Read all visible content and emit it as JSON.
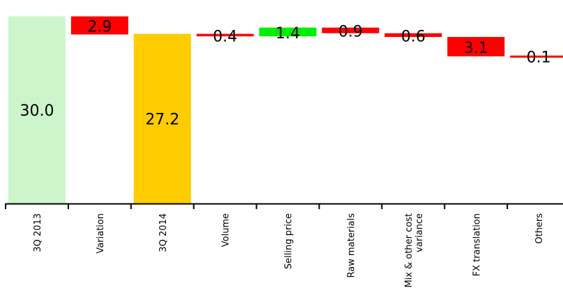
{
  "chart_data": {
    "type": "bar",
    "subtype": "waterfall",
    "title": "",
    "xlabel": "",
    "ylabel": "",
    "grid": false,
    "legend": "none",
    "categories": [
      "3Q 2013",
      "Variation",
      "3Q 2014",
      "Volume",
      "Selling price",
      "Raw materials",
      "Mix & other cost variance",
      "FX translation",
      "Others"
    ],
    "values": [
      30.0,
      -2.9,
      27.2,
      -0.4,
      1.4,
      -0.9,
      -0.6,
      -3.1,
      -0.1
    ],
    "labels": [
      "30.0",
      "2.9",
      "27.2",
      "0.4",
      "1.4",
      "0.9",
      "0.6",
      "3.1",
      "0.1"
    ],
    "bar_kinds": [
      "total",
      "delta",
      "total",
      "delta",
      "delta",
      "delta",
      "delta",
      "delta",
      "delta"
    ],
    "colors": {
      "start_total": "#ccf5cc",
      "end_total": "#ffcc00",
      "increase": "#00ee00",
      "decrease": "#ff0000",
      "axis": "#000000",
      "label": "#000000"
    }
  }
}
